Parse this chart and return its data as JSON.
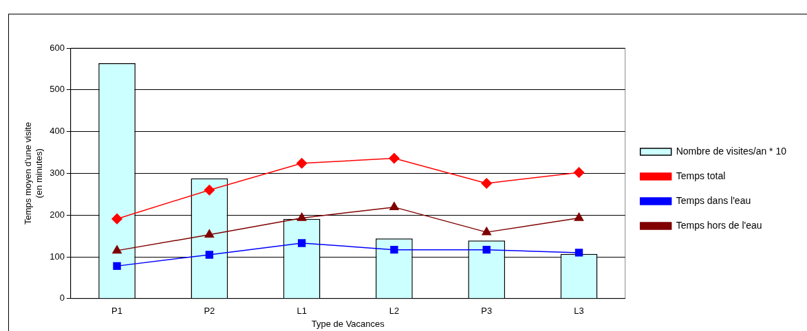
{
  "chart_data": {
    "type": "bar",
    "xlabel": "Type de Vacances",
    "ylabel": "Temps moyen d'une visite\n(en minutes)",
    "categories": [
      "P1",
      "P2",
      "L1",
      "L2",
      "P3",
      "L3"
    ],
    "series": [
      {
        "name": "Nombre de visites/an * 10",
        "color": "#ccffff",
        "values": [
          564,
          288,
          191,
          144,
          139,
          107
        ]
      },
      {
        "name": "Temps total",
        "type": "line",
        "marker": "diamond",
        "color": "#ff0000",
        "values": [
          191,
          260,
          324,
          336,
          276,
          302
        ]
      },
      {
        "name": "Temps dans l'eau",
        "type": "line",
        "marker": "square",
        "color": "#0000ff",
        "values": [
          78,
          105,
          133,
          117,
          117,
          110
        ]
      },
      {
        "name": "Temps hors de l'eau",
        "type": "line",
        "marker": "triangle",
        "color": "#800000",
        "values": [
          115,
          153,
          193,
          219,
          159,
          193
        ]
      }
    ],
    "ylim": [
      0,
      600
    ],
    "yticks": [
      0,
      100,
      200,
      300,
      400,
      500,
      600
    ],
    "grid": "y",
    "legend": "right"
  }
}
